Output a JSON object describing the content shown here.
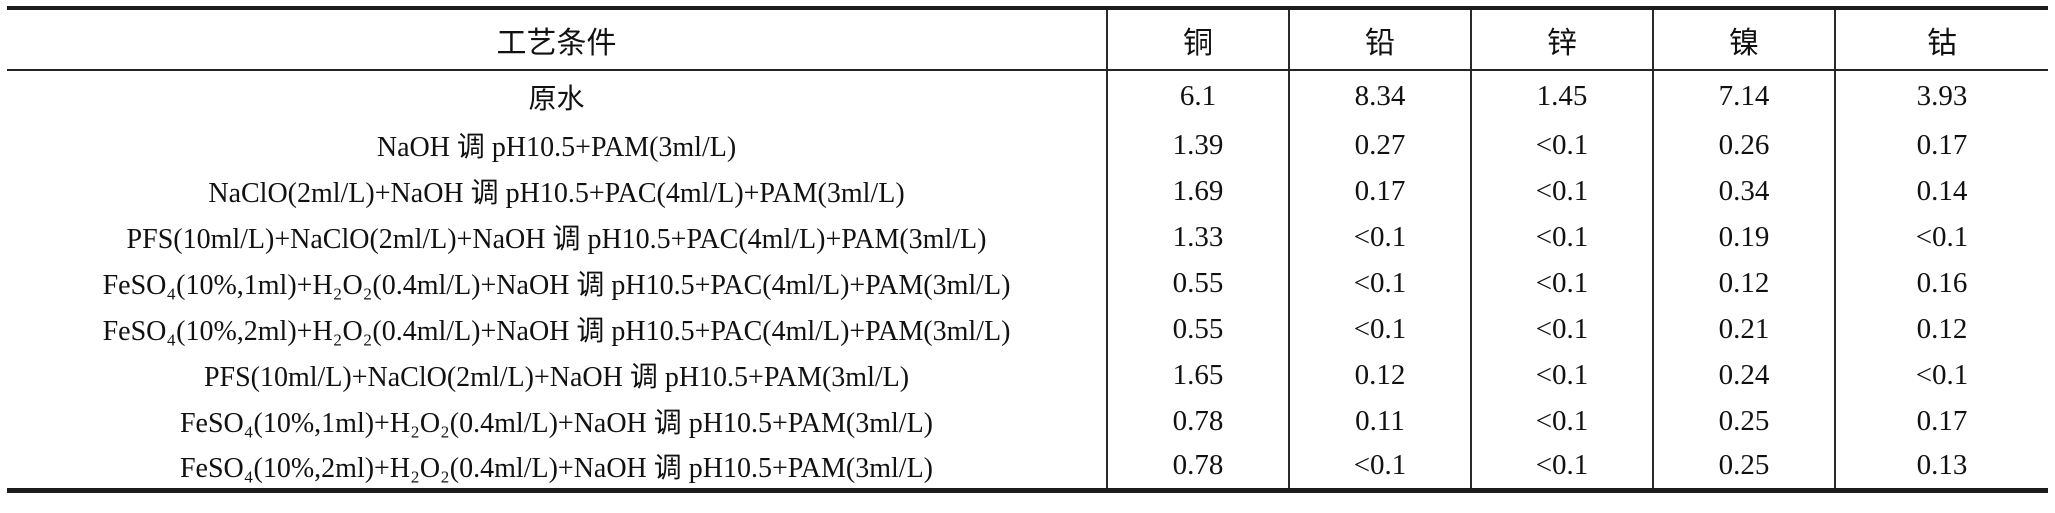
{
  "chart_data": {
    "type": "table",
    "columns": [
      "工艺条件",
      "铜",
      "铅",
      "锌",
      "镍",
      "钴"
    ],
    "rows": [
      {
        "condition": "原水",
        "values": [
          "6.1",
          "8.34",
          "1.45",
          "7.14",
          "3.93"
        ]
      },
      {
        "condition": "NaOH 调 pH10.5+PAM(3ml/L)",
        "values": [
          "1.39",
          "0.27",
          "<0.1",
          "0.26",
          "0.17"
        ]
      },
      {
        "condition": "NaClO(2ml/L)+NaOH 调 pH10.5+PAC(4ml/L)+PAM(3ml/L)",
        "values": [
          "1.69",
          "0.17",
          "<0.1",
          "0.34",
          "0.14"
        ]
      },
      {
        "condition": "PFS(10ml/L)+NaClO(2ml/L)+NaOH 调 pH10.5+PAC(4ml/L)+PAM(3ml/L)",
        "values": [
          "1.33",
          "<0.1",
          "<0.1",
          "0.19",
          "<0.1"
        ]
      },
      {
        "condition": "FeSO₄(10%,1ml)+H₂O₂(0.4ml/L)+NaOH 调 pH10.5+PAC(4ml/L)+PAM(3ml/L)",
        "values": [
          "0.55",
          "<0.1",
          "<0.1",
          "0.12",
          "0.16"
        ]
      },
      {
        "condition": "FeSO₄(10%,2ml)+H₂O₂(0.4ml/L)+NaOH 调 pH10.5+PAC(4ml/L)+PAM(3ml/L)",
        "values": [
          "0.55",
          "<0.1",
          "<0.1",
          "0.21",
          "0.12"
        ]
      },
      {
        "condition": "PFS(10ml/L)+NaClO(2ml/L)+NaOH 调 pH10.5+PAM(3ml/L)",
        "values": [
          "1.65",
          "0.12",
          "<0.1",
          "0.24",
          "<0.1"
        ]
      },
      {
        "condition": "FeSO₄(10%,1ml)+H₂O₂(0.4ml/L)+NaOH 调 pH10.5+PAM(3ml/L)",
        "values": [
          "0.78",
          "0.11",
          "<0.1",
          "0.25",
          "0.17"
        ]
      },
      {
        "condition": "FeSO₄(10%,2ml)+H₂O₂(0.4ml/L)+NaOH 调 pH10.5+PAM(3ml/L)",
        "values": [
          "0.78",
          "<0.1",
          "<0.1",
          "0.25",
          "0.13"
        ]
      }
    ]
  }
}
